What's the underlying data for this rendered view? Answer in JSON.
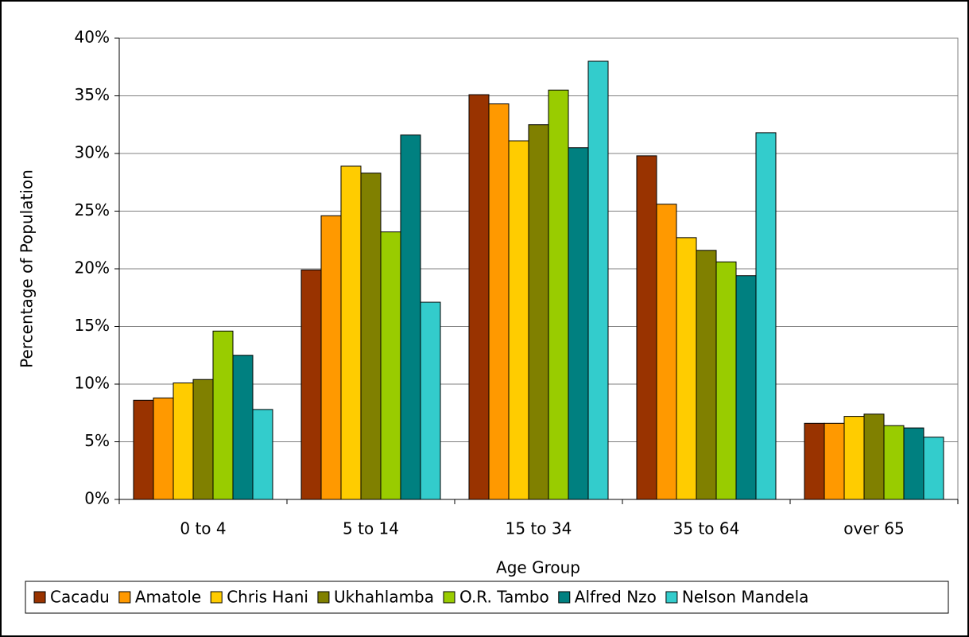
{
  "chart_data": {
    "type": "bar",
    "xlabel": "Age Group",
    "ylabel": "Percentage of Population",
    "categories": [
      "0 to 4",
      "5 to 14",
      "15 to 34",
      "35 to 64",
      "over 65"
    ],
    "series": [
      {
        "name": "Cacadu",
        "color": "#993300",
        "values": [
          8.6,
          19.9,
          35.1,
          29.8,
          6.6
        ]
      },
      {
        "name": "Amatole",
        "color": "#ff9900",
        "values": [
          8.8,
          24.6,
          34.3,
          25.6,
          6.6
        ]
      },
      {
        "name": "Chris Hani",
        "color": "#ffcc00",
        "values": [
          10.1,
          28.9,
          31.1,
          22.7,
          7.2
        ]
      },
      {
        "name": "Ukhahlamba",
        "color": "#808000",
        "values": [
          10.4,
          28.3,
          32.5,
          21.6,
          7.4
        ]
      },
      {
        "name": "O.R. Tambo",
        "color": "#99cc00",
        "values": [
          14.6,
          23.2,
          35.5,
          20.6,
          6.4
        ]
      },
      {
        "name": "Alfred Nzo",
        "color": "#008080",
        "values": [
          12.5,
          31.6,
          30.5,
          19.4,
          6.2
        ]
      },
      {
        "name": "Nelson Mandela",
        "color": "#33cccc",
        "values": [
          7.8,
          17.1,
          38.0,
          31.8,
          5.4
        ]
      }
    ],
    "ylim": [
      0,
      40
    ],
    "yticks": [
      {
        "value": 0,
        "label": "0%"
      },
      {
        "value": 5,
        "label": "5%"
      },
      {
        "value": 10,
        "label": "10%"
      },
      {
        "value": 15,
        "label": "15%"
      },
      {
        "value": 20,
        "label": "20%"
      },
      {
        "value": 25,
        "label": "25%"
      },
      {
        "value": 30,
        "label": "30%"
      },
      {
        "value": 35,
        "label": "35%"
      },
      {
        "value": 40,
        "label": "40%"
      }
    ],
    "grid": true
  }
}
